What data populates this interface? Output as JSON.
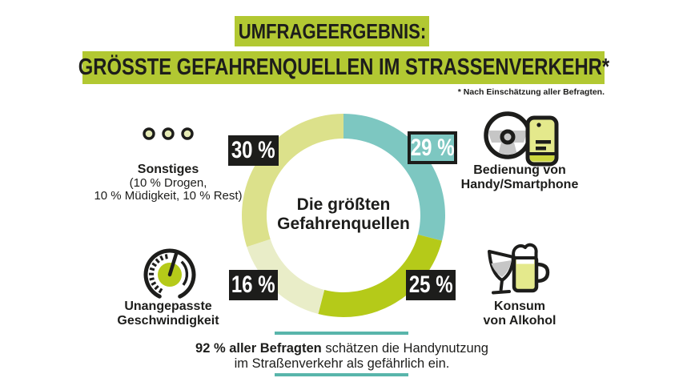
{
  "header": {
    "kicker": "UMFRAGEERGEBNIS:",
    "title": "GRÖSSTE GEFAHRENQUELLEN IM STRASSENVERKEHR*",
    "footnote": "* Nach Einschätzung aller Befragten."
  },
  "colors": {
    "header_green": "#b2c832",
    "segment_teal": "#7dc7c1",
    "segment_lime": "#b5ca19",
    "segment_pale_16": "#e9edc8",
    "segment_pale_30": "#dce18b",
    "callout_line_teal": "#59b5ab",
    "text_black": "#1d1d1b",
    "icon_gray": "#c6c6c6",
    "icon_pale_green": "#e4e98c"
  },
  "chart_data": {
    "type": "pie",
    "subtype": "donut",
    "title": "Die größten Gefahrenquellen",
    "center_label": {
      "line1": "Die größten",
      "line2": "Gefahrenquellen"
    },
    "start_angle_deg": 0,
    "direction": "clockwise",
    "segments": [
      {
        "name": "Bedienung von Handy/Smartphone",
        "value": 29,
        "label": "29 %",
        "color": "#7dc7c1"
      },
      {
        "name": "Konsum von Alkohol",
        "value": 25,
        "label": "25 %",
        "color": "#b5ca19"
      },
      {
        "name": "Unangepasste Geschwindigkeit",
        "value": 16,
        "label": "16 %",
        "color": "#e9edc8"
      },
      {
        "name": "Sonstiges (10 % Drogen, 10 % Müdigkeit, 10 % Rest)",
        "value": 30,
        "label": "30 %",
        "color": "#dce18b"
      }
    ]
  },
  "legend": {
    "sonstiges": {
      "title": "Sonstiges",
      "detail1": "(10 % Drogen,",
      "detail2": "10 % Müdigkeit, 10 % Rest)"
    },
    "handy": {
      "line1": "Bedienung von",
      "line2": "Handy/Smartphone"
    },
    "geschwindigkeit": {
      "line1": "Unangepasste",
      "line2": "Geschwindigkeit"
    },
    "alkohol": {
      "line1": "Konsum",
      "line2": "von Alkohol"
    }
  },
  "callout": {
    "bold": "92 % aller Befragten",
    "rest_line1": " schätzen die Handynutzung",
    "line2": "im Straßenverkehr als gefährlich ein."
  }
}
